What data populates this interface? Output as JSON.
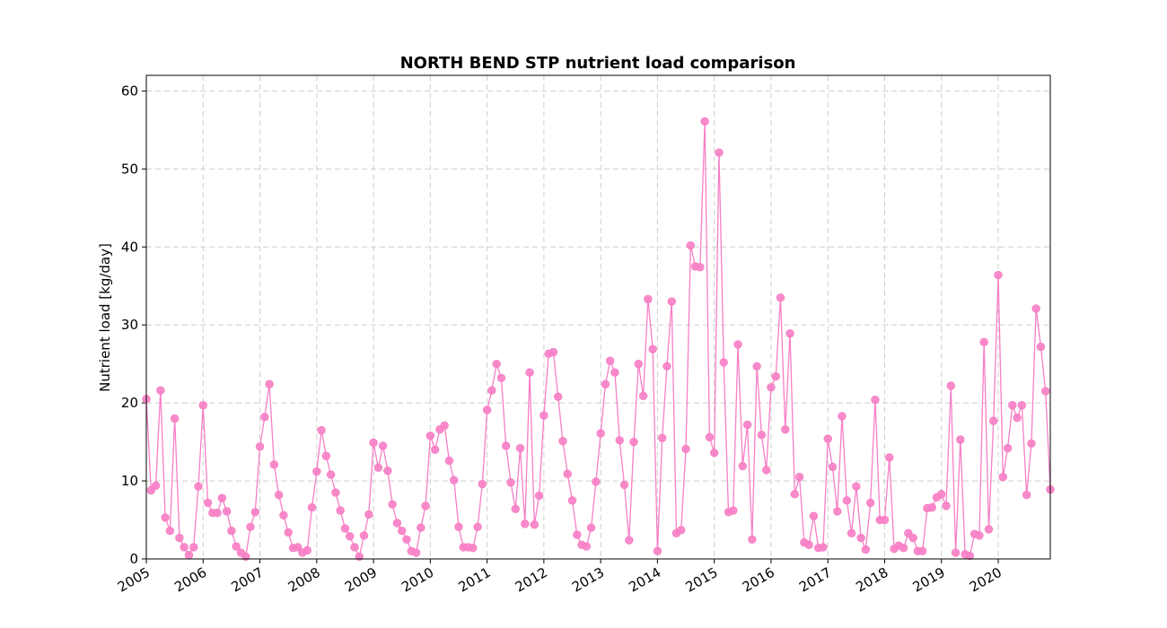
{
  "chart_data": {
    "type": "line",
    "title": "NORTH BEND STP nutrient load comparison",
    "xlabel": "",
    "ylabel": "Nutrient load [kg/day]",
    "ylim": [
      0,
      62
    ],
    "xlim": [
      "2005-01",
      "2020-12"
    ],
    "grid": true,
    "y_ticks": [
      0,
      10,
      20,
      30,
      40,
      50,
      60
    ],
    "x_ticks": [
      "2005",
      "2006",
      "2007",
      "2008",
      "2009",
      "2010",
      "2011",
      "2012",
      "2013",
      "2014",
      "2015",
      "2016",
      "2017",
      "2018",
      "2019",
      "2020"
    ],
    "series": [
      {
        "color": "#f77fc5",
        "marker": "circle",
        "x": [
          "2005-01",
          "2005-02",
          "2005-03",
          "2005-04",
          "2005-05",
          "2005-06",
          "2005-07",
          "2005-08",
          "2005-09",
          "2005-10",
          "2005-11",
          "2005-12",
          "2006-01",
          "2006-02",
          "2006-03",
          "2006-04",
          "2006-05",
          "2006-06",
          "2006-07",
          "2006-08",
          "2006-09",
          "2006-10",
          "2006-11",
          "2006-12",
          "2007-01",
          "2007-02",
          "2007-03",
          "2007-04",
          "2007-05",
          "2007-06",
          "2007-07",
          "2007-08",
          "2007-09",
          "2007-10",
          "2007-11",
          "2007-12",
          "2008-01",
          "2008-02",
          "2008-03",
          "2008-04",
          "2008-05",
          "2008-06",
          "2008-07",
          "2008-08",
          "2008-09",
          "2008-10",
          "2008-11",
          "2008-12",
          "2009-01",
          "2009-02",
          "2009-03",
          "2009-04",
          "2009-05",
          "2009-06",
          "2009-07",
          "2009-08",
          "2009-09",
          "2009-10",
          "2009-11",
          "2009-12",
          "2010-01",
          "2010-02",
          "2010-03",
          "2010-04",
          "2010-05",
          "2010-06",
          "2010-07",
          "2010-08",
          "2010-09",
          "2010-10",
          "2010-11",
          "2010-12",
          "2011-01",
          "2011-02",
          "2011-03",
          "2011-04",
          "2011-05",
          "2011-06",
          "2011-07",
          "2011-08",
          "2011-09",
          "2011-10",
          "2011-11",
          "2011-12",
          "2012-01",
          "2012-02",
          "2012-03",
          "2012-04",
          "2012-05",
          "2012-06",
          "2012-07",
          "2012-08",
          "2012-09",
          "2012-10",
          "2012-11",
          "2012-12",
          "2013-01",
          "2013-02",
          "2013-03",
          "2013-04",
          "2013-05",
          "2013-06",
          "2013-07",
          "2013-08",
          "2013-09",
          "2013-10",
          "2013-11",
          "2013-12",
          "2014-01",
          "2014-02",
          "2014-03",
          "2014-04",
          "2014-05",
          "2014-06",
          "2014-07",
          "2014-08",
          "2014-09",
          "2014-10",
          "2014-11",
          "2014-12",
          "2015-01",
          "2015-02",
          "2015-03",
          "2015-04",
          "2015-05",
          "2015-06",
          "2015-07",
          "2015-08",
          "2015-09",
          "2015-10",
          "2015-11",
          "2015-12",
          "2016-01",
          "2016-02",
          "2016-03",
          "2016-04",
          "2016-05",
          "2016-06",
          "2016-07",
          "2016-08",
          "2016-09",
          "2016-10",
          "2016-11",
          "2016-12",
          "2017-01",
          "2017-02",
          "2017-03",
          "2017-04",
          "2017-05",
          "2017-06",
          "2017-07",
          "2017-08",
          "2017-09",
          "2017-10",
          "2017-11",
          "2017-12",
          "2018-01",
          "2018-02",
          "2018-03",
          "2018-04",
          "2018-05",
          "2018-06",
          "2018-07",
          "2018-08",
          "2018-09",
          "2018-10",
          "2018-11",
          "2018-12",
          "2019-01",
          "2019-02",
          "2019-03",
          "2019-04",
          "2019-05",
          "2019-06",
          "2019-07",
          "2019-08",
          "2019-09",
          "2019-10",
          "2019-11",
          "2019-12",
          "2020-01",
          "2020-02",
          "2020-03",
          "2020-04",
          "2020-05",
          "2020-06",
          "2020-07",
          "2020-08",
          "2020-09",
          "2020-10",
          "2020-11",
          "2020-12"
        ],
        "values": [
          20.5,
          8.8,
          9.4,
          21.6,
          5.3,
          3.6,
          18.0,
          2.7,
          1.5,
          0.5,
          1.5,
          9.3,
          19.7,
          7.2,
          5.9,
          5.9,
          7.8,
          6.1,
          3.6,
          1.6,
          0.8,
          0.3,
          4.1,
          6.0,
          14.4,
          18.2,
          22.4,
          12.1,
          8.2,
          5.6,
          3.4,
          1.4,
          1.5,
          0.8,
          1.1,
          6.6,
          11.2,
          16.5,
          13.2,
          10.8,
          8.5,
          6.2,
          3.9,
          2.9,
          1.5,
          0.3,
          3.0,
          5.7,
          14.9,
          11.7,
          14.5,
          11.3,
          7.0,
          4.6,
          3.6,
          2.5,
          1.0,
          0.8,
          4.0,
          6.8,
          15.8,
          14.0,
          16.6,
          17.1,
          12.6,
          10.1,
          4.1,
          1.5,
          1.5,
          1.4,
          4.1,
          9.6,
          19.1,
          21.6,
          25.0,
          23.2,
          14.5,
          9.8,
          6.4,
          14.2,
          4.5,
          23.9,
          4.4,
          8.1,
          18.4,
          26.3,
          26.5,
          20.8,
          15.1,
          10.9,
          7.5,
          3.1,
          1.8,
          1.6,
          4.0,
          9.9,
          16.1,
          22.4,
          25.4,
          23.9,
          15.2,
          9.5,
          2.4,
          15.0,
          25.0,
          20.9,
          33.3,
          26.9,
          1.0,
          15.5,
          24.7,
          33.0,
          3.3,
          3.7,
          14.1,
          40.2,
          37.5,
          37.4,
          56.1,
          15.6,
          13.6,
          52.1,
          25.2,
          6.0,
          6.2,
          27.5,
          11.9,
          17.2,
          2.5,
          24.7,
          15.9,
          11.4,
          22.0,
          23.4,
          33.5,
          16.6,
          28.9,
          8.3,
          10.5,
          2.1,
          1.8,
          5.5,
          1.4,
          1.5,
          15.4,
          11.8,
          6.1,
          18.3,
          7.5,
          3.3,
          9.3,
          2.7,
          1.2,
          7.2,
          20.4,
          5.0,
          5.0,
          13.0,
          1.3,
          1.7,
          1.4,
          3.3,
          2.7,
          1.0,
          1.0,
          6.5,
          6.6,
          7.9,
          8.3,
          6.8,
          22.2,
          0.8,
          15.3,
          0.6,
          0.4,
          3.2,
          3.0,
          27.8,
          3.8,
          17.7,
          36.4,
          10.5,
          14.2,
          19.7,
          18.1,
          19.7,
          8.2,
          14.8,
          32.1,
          27.2,
          21.5,
          8.9
        ]
      }
    ]
  }
}
